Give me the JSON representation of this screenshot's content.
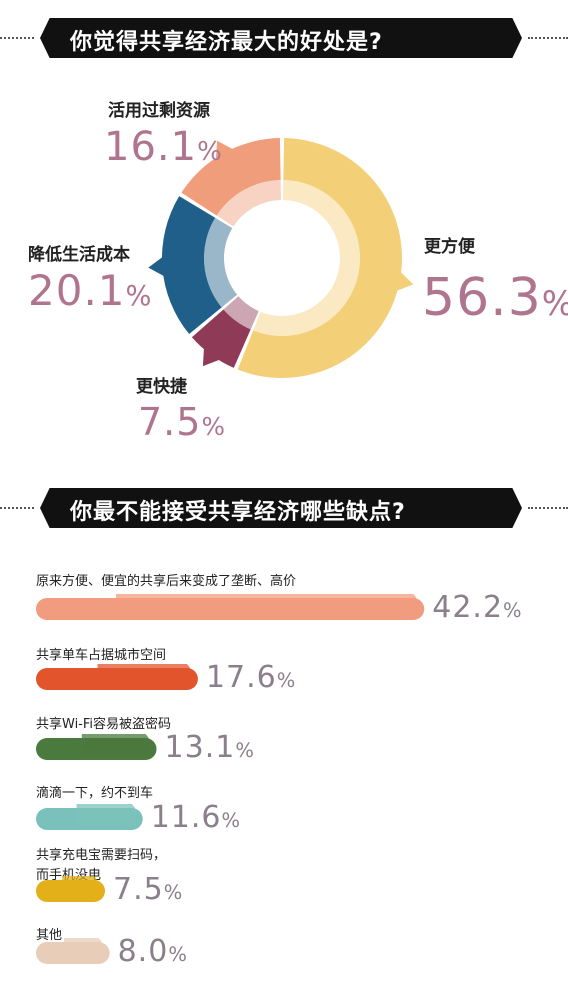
{
  "section1": {
    "title": "你觉得共享经济最大的好处是?"
  },
  "section2": {
    "title": "你最不能接受共享经济哪些缺点?"
  },
  "chart_data": [
    {
      "type": "pie",
      "title": "你觉得共享经济最大的好处是?",
      "donut": true,
      "slices": [
        {
          "label": "更方便",
          "value": 56.3,
          "value_text": "56.3",
          "color": "#f3cf78"
        },
        {
          "label": "更快捷",
          "value": 7.5,
          "value_text": "7.5",
          "color": "#8f3a56"
        },
        {
          "label": "降低生活成本",
          "value": 20.1,
          "value_text": "20.1",
          "color": "#1f5f8a"
        },
        {
          "label": "活用过剩资源",
          "value": 16.1,
          "value_text": "16.1",
          "color": "#ef9d7a"
        }
      ],
      "unit": "%"
    },
    {
      "type": "bar",
      "orientation": "horizontal",
      "title": "你最不能接受共享经济哪些缺点?",
      "categories": [
        "原来方便、便宜的共享后来变成了垄断、高价",
        "共享单车占据城市空间",
        "共享Wi-Fi容易被盗密码",
        "滴滴一下，约不到车",
        "共享充电宝需要扫码，\n而手机没电",
        "其他"
      ],
      "values": [
        42.2,
        17.6,
        13.1,
        11.6,
        7.5,
        8.0
      ],
      "value_texts": [
        "42.2",
        "17.6",
        "13.1",
        "11.6",
        "7.5",
        "8.0"
      ],
      "colors": [
        "#f19c7f",
        "#e2552c",
        "#4b7a3e",
        "#7bc1bb",
        "#e3b01a",
        "#e8cdb8"
      ],
      "unit": "%"
    }
  ]
}
